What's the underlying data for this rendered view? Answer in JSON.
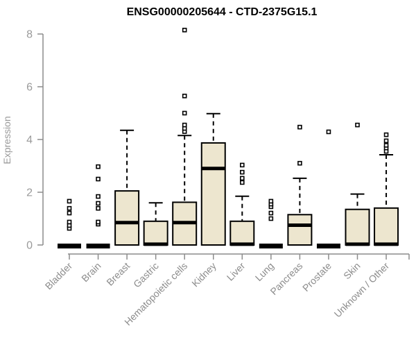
{
  "colors": {
    "box_fill": "#EDE6CF",
    "box_stroke": "#000000",
    "median": "#000000",
    "outlier_stroke": "#000000",
    "outlier_fill": "#FFFFFF",
    "axis": "#8C8C8C",
    "tick_text": "#9A9A9A",
    "title_text": "#000000",
    "background": "#FFFFFF"
  },
  "chart_data": {
    "type": "boxplot",
    "title": "ENSG00000205644 - CTD-2375G15.1",
    "ylabel": "Expression",
    "xlabel": "",
    "ylim": [
      0,
      8
    ],
    "yticks": [
      0,
      2,
      4,
      6,
      8
    ],
    "grid": false,
    "legend": false,
    "categories": [
      "Bladder",
      "Brain",
      "Breast",
      "Gastric",
      "Hematopoietic cells",
      "Kidney",
      "Liver",
      "Lung",
      "Pancreas",
      "Prostate",
      "Skin",
      "Unknown / Other"
    ],
    "series": [
      {
        "name": "Bladder",
        "q1": 0,
        "median": 0.02,
        "q3": 0.05,
        "whisker_low": 0,
        "whisker_high": null,
        "outliers": [
          0.63,
          0.74,
          0.87,
          1.21,
          1.39,
          1.66
        ]
      },
      {
        "name": "Brain",
        "q1": 0,
        "median": 0.02,
        "q3": 0.05,
        "whisker_low": 0,
        "whisker_high": null,
        "outliers": [
          0.79,
          0.87,
          1.39,
          1.58,
          1.84,
          2.5,
          2.97
        ]
      },
      {
        "name": "Breast",
        "q1": 0,
        "median": 0.85,
        "q3": 2.05,
        "whisker_low": 0,
        "whisker_high": 4.35,
        "outliers": []
      },
      {
        "name": "Gastric",
        "q1": 0,
        "median": 0.03,
        "q3": 0.9,
        "whisker_low": 0,
        "whisker_high": 1.6,
        "outliers": []
      },
      {
        "name": "Hematopoietic cells",
        "q1": 0,
        "median": 0.85,
        "q3": 1.62,
        "whisker_low": 0,
        "whisker_high": 4.15,
        "outliers": [
          4.3,
          4.42,
          4.55,
          5.0,
          5.65,
          8.15
        ]
      },
      {
        "name": "Kidney",
        "q1": 0,
        "median": 2.9,
        "q3": 3.87,
        "whisker_low": 0,
        "whisker_high": 4.98,
        "outliers": []
      },
      {
        "name": "Liver",
        "q1": 0,
        "median": 0.03,
        "q3": 0.9,
        "whisker_low": 0,
        "whisker_high": 1.85,
        "outliers": [
          2.37,
          2.53,
          2.76,
          3.03
        ]
      },
      {
        "name": "Lung",
        "q1": 0,
        "median": 0.02,
        "q3": 0.05,
        "whisker_low": 0,
        "whisker_high": null,
        "outliers": [
          1.0,
          1.21,
          1.45,
          1.55,
          1.66
        ]
      },
      {
        "name": "Pancreas",
        "q1": 0,
        "median": 0.75,
        "q3": 1.15,
        "whisker_low": 0,
        "whisker_high": 2.53,
        "outliers": [
          3.1,
          4.47
        ]
      },
      {
        "name": "Prostate",
        "q1": 0,
        "median": 0.02,
        "q3": 0.05,
        "whisker_low": 0,
        "whisker_high": null,
        "outliers": [
          4.29
        ]
      },
      {
        "name": "Skin",
        "q1": 0,
        "median": 0.03,
        "q3": 1.35,
        "whisker_low": 0,
        "whisker_high": 1.93,
        "outliers": [
          4.55
        ]
      },
      {
        "name": "Unknown / Other",
        "q1": 0,
        "median": 0.03,
        "q3": 1.4,
        "whisker_low": 0,
        "whisker_high": 3.42,
        "outliers": [
          3.55,
          3.68,
          3.78,
          3.95,
          4.18
        ]
      }
    ]
  }
}
